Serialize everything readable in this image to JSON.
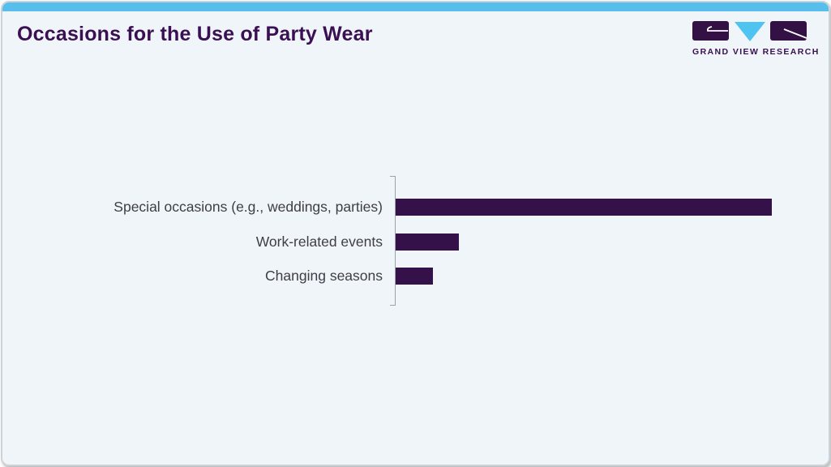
{
  "header": {
    "title": "Occasions for the Use of Party Wear"
  },
  "logo": {
    "wordmark": "GRAND VIEW RESEARCH",
    "brand_purple": "#3a1053",
    "brand_cyan": "#4fc4f0"
  },
  "colors": {
    "card_background": "#eff5f9",
    "top_strip": "#58bfec",
    "bar_fill": "#341249",
    "title_text": "#3a1053",
    "label_text": "#3f3e47",
    "axis_line": "#9aa3a8",
    "card_border": "#ccd3d8"
  },
  "chart_data": {
    "type": "bar",
    "orientation": "horizontal",
    "title": "Occasions for the Use of Party Wear",
    "xlabel": "",
    "ylabel": "",
    "categories": [
      "Special occasions (e.g., weddings, parties)",
      "Work-related events",
      "Changing seasons"
    ],
    "values": [
      100,
      16.8,
      9.9
    ],
    "value_units": "relative length, % of longest bar (no value labels shown in image)",
    "value_labels_shown": false,
    "legend": "none",
    "grid": false,
    "axes_shown": "single vertical baseline at left of bars with small end ticks; no x-axis, no tick labels",
    "bar_color": "#341249"
  }
}
